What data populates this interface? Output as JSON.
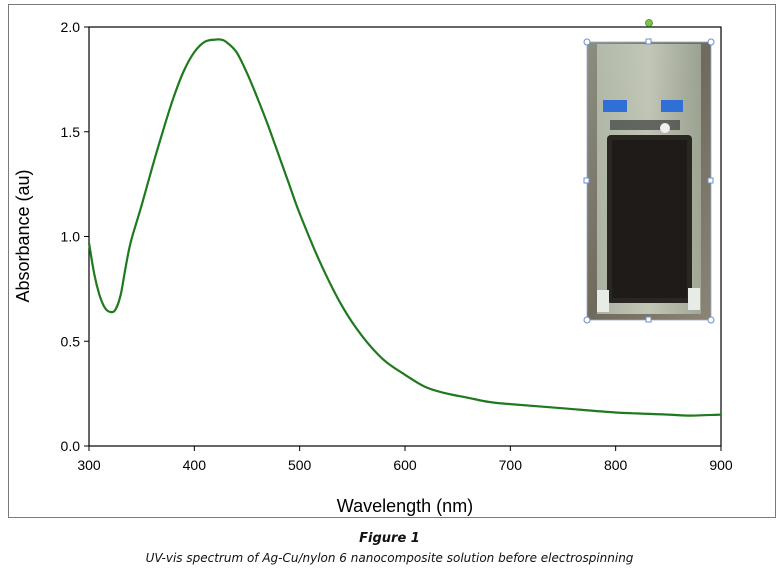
{
  "caption": {
    "title": "Figure 1",
    "text": "UV-vis spectrum of Ag-Cu/nylon 6 nanocomposite solution before electrospinning"
  },
  "inset": {
    "description": "cuvette-photo"
  },
  "colors": {
    "line": "#1f7a1f",
    "axis": "#000000"
  },
  "chart_data": {
    "type": "line",
    "title": "",
    "xlabel": "Wavelength (nm)",
    "ylabel": "Absorbance (au)",
    "xlim": [
      300,
      900
    ],
    "ylim": [
      0.0,
      2.0
    ],
    "xticks": [
      300,
      400,
      500,
      600,
      700,
      800,
      900
    ],
    "xtick_labels": [
      "300",
      "400",
      "500",
      "600",
      "700",
      "800",
      "900"
    ],
    "yticks": [
      0.0,
      0.5,
      1.0,
      1.5,
      2.0
    ],
    "ytick_labels": [
      "0.0",
      "0.5",
      "1.0",
      "1.5",
      "2.0"
    ],
    "grid": false,
    "series": [
      {
        "x": [
          300,
          305,
          310,
          315,
          320,
          325,
          330,
          335,
          340,
          350,
          360,
          370,
          380,
          390,
          400,
          410,
          420,
          425,
          430,
          440,
          450,
          460,
          470,
          480,
          490,
          500,
          520,
          540,
          560,
          580,
          600,
          620,
          640,
          660,
          680,
          700,
          750,
          800,
          850,
          870,
          900
        ],
        "y": [
          0.97,
          0.82,
          0.72,
          0.66,
          0.64,
          0.65,
          0.72,
          0.86,
          0.98,
          1.15,
          1.33,
          1.5,
          1.66,
          1.79,
          1.88,
          1.93,
          1.94,
          1.94,
          1.93,
          1.88,
          1.78,
          1.66,
          1.53,
          1.39,
          1.25,
          1.11,
          0.87,
          0.67,
          0.52,
          0.41,
          0.34,
          0.28,
          0.25,
          0.23,
          0.21,
          0.2,
          0.18,
          0.16,
          0.15,
          0.145,
          0.15
        ]
      }
    ]
  }
}
